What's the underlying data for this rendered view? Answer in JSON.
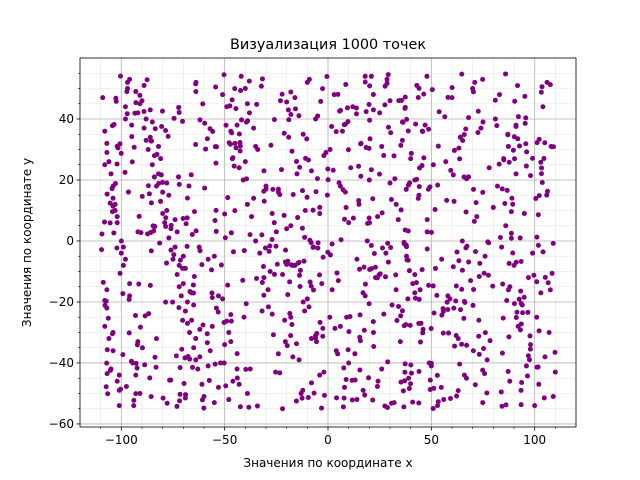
{
  "chart_data": {
    "type": "scatter",
    "title": "Визуализация 1000 точек",
    "xlabel": "Значения по координате x",
    "ylabel": "Значения по координате y",
    "xlim": [
      -120,
      120
    ],
    "ylim": [
      -61,
      60
    ],
    "xticks": [
      -100,
      -50,
      0,
      50,
      100
    ],
    "yticks": [
      -60,
      -40,
      -20,
      0,
      20,
      40
    ],
    "xtick_labels": [
      "−100",
      "−50",
      "0",
      "50",
      "100"
    ],
    "ytick_labels": [
      "−60",
      "−40",
      "−20",
      "0",
      "20",
      "40"
    ],
    "grid": true,
    "minor_grid": true,
    "point_color": "#800080",
    "point_count": 1000,
    "x_range": [
      -110,
      110
    ],
    "y_range": [
      -55,
      55
    ],
    "series": [
      {
        "x": [
          -109,
          -107,
          -104,
          -102,
          -99,
          -107,
          -104,
          -101,
          -97,
          -95,
          -108,
          -103,
          -100,
          -96,
          -106,
          -102,
          -98,
          -107,
          -104,
          -100,
          -96,
          -108,
          -105,
          -101,
          -98,
          -106,
          -103,
          -99,
          -107,
          -104,
          -101,
          -97,
          -108,
          -105,
          -102,
          -98,
          -96,
          -91,
          -88,
          -84,
          -80,
          -76,
          -72,
          -68,
          -64,
          -60,
          -93,
          -89,
          -85,
          -81,
          -77,
          -73,
          -69,
          -65,
          -61,
          -92,
          -87,
          -83,
          -79,
          -75,
          -71,
          -67,
          -63,
          -94,
          -90,
          -86,
          -82,
          -78,
          -74,
          -70,
          -66,
          -62,
          -91,
          -88,
          -84,
          -80,
          -76,
          -72,
          -68,
          -64,
          -93,
          -89,
          -85,
          -81,
          -77,
          -73,
          -69,
          -65,
          -92,
          -86,
          -82,
          -78,
          -74,
          -70,
          -66,
          -62,
          -58,
          -55,
          -51,
          -47,
          -43,
          -39,
          -35,
          -31,
          -27,
          -57,
          -53,
          -49,
          -45,
          -41,
          -37,
          -33,
          -29,
          -56,
          -52,
          -48,
          -44,
          -40,
          -36,
          -32,
          -28,
          -54,
          -50,
          -46,
          -42,
          -38,
          -34,
          -30,
          -26,
          -58,
          -53,
          -48,
          -44,
          -40,
          -36,
          -31,
          -27,
          -55,
          -51,
          -47,
          -43,
          -39,
          -35,
          -30,
          -25,
          -22,
          -18,
          -14,
          -10,
          -6,
          -2,
          -24,
          -20,
          -16,
          -12,
          -8,
          -4,
          -23,
          -19,
          -15,
          -11,
          -7,
          -3,
          -21,
          -17,
          -13,
          -9,
          -5,
          -1,
          -24,
          -18,
          -14,
          -10,
          -6,
          -2,
          -22,
          -16,
          -12,
          -8,
          -4,
          2,
          5,
          9,
          13,
          17,
          21,
          25,
          1,
          6,
          10,
          14,
          18,
          22,
          26,
          3,
          7,
          11,
          15,
          19,
          23,
          27,
          4,
          8,
          12,
          16,
          20,
          24,
          28,
          2,
          6,
          10,
          14,
          18,
          22,
          26,
          30,
          34,
          38,
          42,
          46,
          50,
          32,
          36,
          40,
          44,
          48,
          52,
          31,
          35,
          39,
          43,
          47,
          51,
          33,
          37,
          41,
          45,
          49,
          53,
          30,
          36,
          42,
          48,
          55,
          59,
          63,
          67,
          71,
          75,
          57,
          61,
          65,
          69,
          73,
          77,
          56,
          60,
          64,
          68,
          72,
          76,
          58,
          62,
          66,
          70,
          74,
          78,
          80,
          84,
          88,
          92,
          96,
          100,
          104,
          108,
          82,
          86,
          90,
          94,
          98,
          102,
          106,
          81,
          85,
          89,
          93,
          97,
          101,
          105,
          109,
          83,
          87,
          91,
          95,
          99,
          103,
          107,
          110
        ],
        "y": [
          47,
          32,
          18,
          6,
          -8,
          -22,
          -36,
          -49,
          52,
          38,
          25,
          10,
          -4,
          -18,
          -32,
          -46,
          44,
          29,
          14,
          0,
          -14,
          -28,
          -42,
          -54,
          40,
          26,
          12,
          -2,
          -16,
          -30,
          -44,
          50,
          36,
          22,
          8,
          -6,
          53,
          45,
          33,
          21,
          9,
          -3,
          -15,
          -27,
          -39,
          -51,
          49,
          37,
          25,
          13,
          1,
          -11,
          -23,
          -35,
          -47,
          42,
          30,
          18,
          6,
          -6,
          -18,
          -30,
          -42,
          -54,
          46,
          34,
          22,
          10,
          -2,
          -14,
          -26,
          -38,
          -50,
          40,
          28,
          16,
          4,
          -8,
          -20,
          -32,
          -44,
          51,
          39,
          27,
          15,
          3,
          -9,
          -21,
          -33,
          43,
          31,
          19,
          7,
          -5,
          -17,
          -29,
          -41,
          -53,
          48,
          36,
          24,
          12,
          0,
          -12,
          -24,
          -36,
          -48,
          44,
          32,
          20,
          8,
          -4,
          -16,
          -28,
          -40,
          -52,
          38,
          26,
          14,
          2,
          -10,
          -22,
          -34,
          -46,
          54,
          42,
          30,
          18,
          6,
          -6,
          -18,
          -30,
          -42,
          50,
          37,
          23,
          9,
          -5,
          -19,
          -33,
          -47,
          45,
          31,
          17,
          3,
          -11,
          -25,
          -39,
          52,
          40,
          28,
          16,
          4,
          -8,
          -20,
          -32,
          -44,
          46,
          34,
          22,
          10,
          -2,
          -14,
          -26,
          -38,
          -50,
          53,
          41,
          29,
          17,
          5,
          -7,
          -19,
          -31,
          -43,
          -55,
          47,
          35,
          23,
          11,
          -1,
          -13,
          -25,
          -37,
          -49,
          54,
          42,
          30,
          18,
          6,
          -6,
          -18,
          -30,
          -42,
          48,
          36,
          24,
          12,
          0,
          -12,
          -24,
          -36,
          -48,
          44,
          32,
          20,
          8,
          -4,
          -16,
          -28,
          -40,
          -52,
          54,
          43,
          31,
          19,
          7,
          -5,
          -17,
          -29,
          -41,
          -53,
          39,
          27,
          15,
          3,
          -9,
          -21,
          -33,
          -45,
          51,
          38,
          25,
          12,
          -1,
          -14,
          -27,
          -40,
          -54,
          46,
          33,
          20,
          7,
          -6,
          -19,
          -32,
          -45,
          52,
          39,
          26,
          13,
          0,
          -13,
          -26,
          -39,
          -52,
          47,
          34,
          21,
          8,
          -5,
          -18,
          -31,
          -44,
          50,
          37,
          24,
          11,
          -2,
          -15,
          -28,
          -41,
          -54,
          44,
          31,
          18,
          5,
          -8,
          -21,
          -34,
          -47,
          52,
          40,
          27,
          14,
          1,
          -12,
          -25,
          -38,
          -51,
          48,
          35,
          22,
          9,
          -4,
          -17,
          -30,
          -43
        ]
      }
    ]
  }
}
